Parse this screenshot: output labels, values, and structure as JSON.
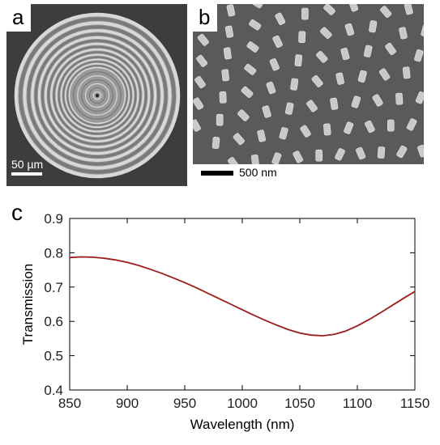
{
  "panel_a": {
    "letter": "a",
    "scale_label": "50 µm"
  },
  "panel_b": {
    "letter": "b",
    "scale_label": "500 nm"
  },
  "panel_c": {
    "letter": "c"
  },
  "chart_data": {
    "type": "line",
    "title": "",
    "xlabel": "Wavelength (nm)",
    "ylabel": "Transmission",
    "xlim": [
      850,
      1150
    ],
    "ylim": [
      0.4,
      0.9
    ],
    "xticks": [
      850,
      900,
      950,
      1000,
      1050,
      1100,
      1150
    ],
    "yticks": [
      0.4,
      0.5,
      0.6,
      0.7,
      0.8,
      0.9
    ],
    "grid": false,
    "series": [
      {
        "color": "#9b1c1c",
        "x": [
          850,
          860,
          870,
          880,
          890,
          900,
          910,
          920,
          930,
          940,
          950,
          960,
          970,
          980,
          990,
          1000,
          1010,
          1020,
          1030,
          1040,
          1050,
          1060,
          1070,
          1080,
          1090,
          1100,
          1110,
          1120,
          1130,
          1140,
          1150
        ],
        "y": [
          0.786,
          0.788,
          0.787,
          0.784,
          0.779,
          0.772,
          0.763,
          0.752,
          0.74,
          0.727,
          0.713,
          0.698,
          0.682,
          0.666,
          0.65,
          0.634,
          0.618,
          0.603,
          0.589,
          0.576,
          0.566,
          0.56,
          0.558,
          0.562,
          0.572,
          0.587,
          0.605,
          0.625,
          0.646,
          0.667,
          0.687
        ]
      }
    ]
  }
}
